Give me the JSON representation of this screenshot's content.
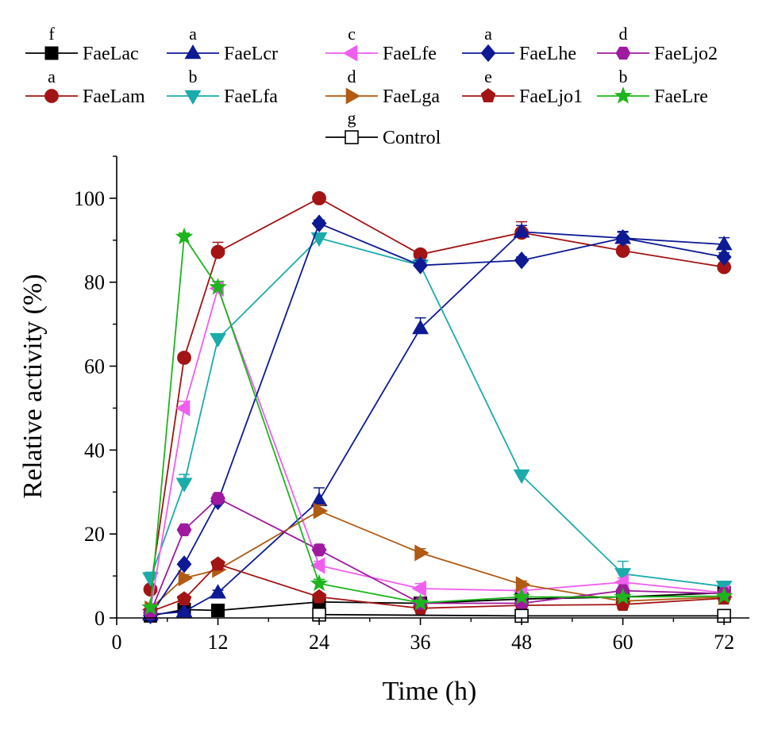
{
  "chart_data": {
    "type": "line",
    "title": "",
    "xlabel": "Time (h)",
    "ylabel": "Relative activity (%)",
    "xlim": [
      0,
      75
    ],
    "ylim": [
      0,
      110
    ],
    "xticks": [
      0,
      12,
      24,
      36,
      48,
      60,
      72
    ],
    "yticks": [
      0,
      20,
      40,
      60,
      80,
      100
    ],
    "legend_position": "top",
    "series": [
      {
        "name": "FaeLac",
        "letter": "f",
        "color": "#000000",
        "marker": "square",
        "filled": true,
        "x": [
          4,
          8,
          12,
          24,
          36,
          48,
          60,
          72
        ],
        "y": [
          0.5,
          2,
          1.8,
          3.8,
          3.5,
          4.5,
          5,
          6
        ],
        "err": [
          0.2,
          0.3,
          0.3,
          0.4,
          0.4,
          0.4,
          0.4,
          0.5
        ]
      },
      {
        "name": "FaeLam",
        "letter": "a",
        "color": "#a31414",
        "marker": "circle",
        "filled": true,
        "x": [
          4,
          8,
          12,
          24,
          36,
          48,
          60,
          72
        ],
        "y": [
          6.8,
          62,
          87.2,
          100,
          86.6,
          91.8,
          87.5,
          83.6
        ],
        "err": [
          0.5,
          1.0,
          2.3,
          0.6,
          1.0,
          2.6,
          1.1,
          2.1
        ]
      },
      {
        "name": "FaeLcr",
        "letter": "a",
        "color": "#0d1a94",
        "marker": "triangle-up",
        "filled": true,
        "x": [
          4,
          8,
          12,
          24,
          36,
          48,
          60,
          72
        ],
        "y": [
          0.8,
          1.5,
          6,
          28,
          69,
          92,
          90.5,
          89
        ],
        "err": [
          0.3,
          0.3,
          0.6,
          3.0,
          2.5,
          1.5,
          1.4,
          1.6
        ]
      },
      {
        "name": "FaeLfa",
        "letter": "b",
        "color": "#1cabab",
        "marker": "triangle-down",
        "filled": true,
        "x": [
          4,
          8,
          12,
          24,
          36,
          48,
          60,
          72
        ],
        "y": [
          9.5,
          32,
          66.5,
          90.5,
          84,
          34,
          10.5,
          7.5
        ],
        "err": [
          1.4,
          2.2,
          1.0,
          1.0,
          1.4,
          0.8,
          3.0,
          1.2
        ]
      },
      {
        "name": "FaeLfe",
        "letter": "c",
        "color": "#f05ef0",
        "marker": "triangle-left",
        "filled": true,
        "x": [
          4,
          8,
          12,
          24,
          36,
          48,
          60,
          72
        ],
        "y": [
          2,
          50,
          78.5,
          12.5,
          7,
          6.5,
          8.5,
          6
        ],
        "err": [
          0.4,
          1.6,
          1.6,
          1.0,
          1.2,
          0.8,
          1.0,
          0.8
        ]
      },
      {
        "name": "FaeLga",
        "letter": "d",
        "color": "#b05a12",
        "marker": "triangle-right",
        "filled": true,
        "x": [
          4,
          8,
          12,
          24,
          36,
          48,
          60,
          72
        ],
        "y": [
          2.2,
          9.5,
          11.5,
          25.5,
          15.5,
          8,
          4,
          5
        ],
        "err": [
          0.3,
          0.8,
          1.0,
          1.4,
          1.0,
          0.8,
          0.5,
          0.5
        ]
      },
      {
        "name": "FaeLhe",
        "letter": "a",
        "color": "#0d1a94",
        "marker": "diamond",
        "filled": true,
        "x": [
          4,
          8,
          12,
          24,
          36,
          48,
          60,
          72
        ],
        "y": [
          0.6,
          12.8,
          27.8,
          94,
          84,
          85.2,
          90.5,
          86
        ],
        "err": [
          0.2,
          0.6,
          1.0,
          0.8,
          1.2,
          0.8,
          1.6,
          1.0
        ]
      },
      {
        "name": "FaeLjo1",
        "letter": "e",
        "color": "#a31414",
        "marker": "pentagon",
        "filled": true,
        "x": [
          4,
          8,
          12,
          24,
          36,
          48,
          60,
          72
        ],
        "y": [
          1.5,
          4.5,
          12.8,
          5,
          2.3,
          3,
          3.2,
          4.7
        ],
        "err": [
          0.3,
          0.5,
          0.8,
          0.5,
          0.3,
          0.3,
          0.4,
          0.5
        ]
      },
      {
        "name": "FaeLjo2",
        "letter": "d",
        "color": "#a01aa0",
        "marker": "hexagon",
        "filled": true,
        "x": [
          4,
          8,
          12,
          24,
          36,
          48,
          60,
          72
        ],
        "y": [
          1.2,
          21,
          28.5,
          16.2,
          3.5,
          3.5,
          6.5,
          5.8
        ],
        "err": [
          0.3,
          0.8,
          1.0,
          1.2,
          0.4,
          0.4,
          0.6,
          0.6
        ]
      },
      {
        "name": "FaeLre",
        "letter": "b",
        "color": "#1db51d",
        "marker": "star",
        "filled": true,
        "x": [
          4,
          8,
          12,
          24,
          36,
          48,
          60,
          72
        ],
        "y": [
          2.5,
          90.8,
          78.8,
          8.2,
          3.6,
          5,
          5,
          5.2
        ],
        "err": [
          0.4,
          0.9,
          1.4,
          1.0,
          0.4,
          0.4,
          0.4,
          0.4
        ]
      },
      {
        "name": "Control",
        "letter": "g",
        "color": "#000000",
        "marker": "square",
        "filled": false,
        "x": [
          24,
          48,
          72
        ],
        "y": [
          0.8,
          0.5,
          0.5
        ],
        "err": [
          0,
          0,
          0
        ]
      }
    ]
  }
}
